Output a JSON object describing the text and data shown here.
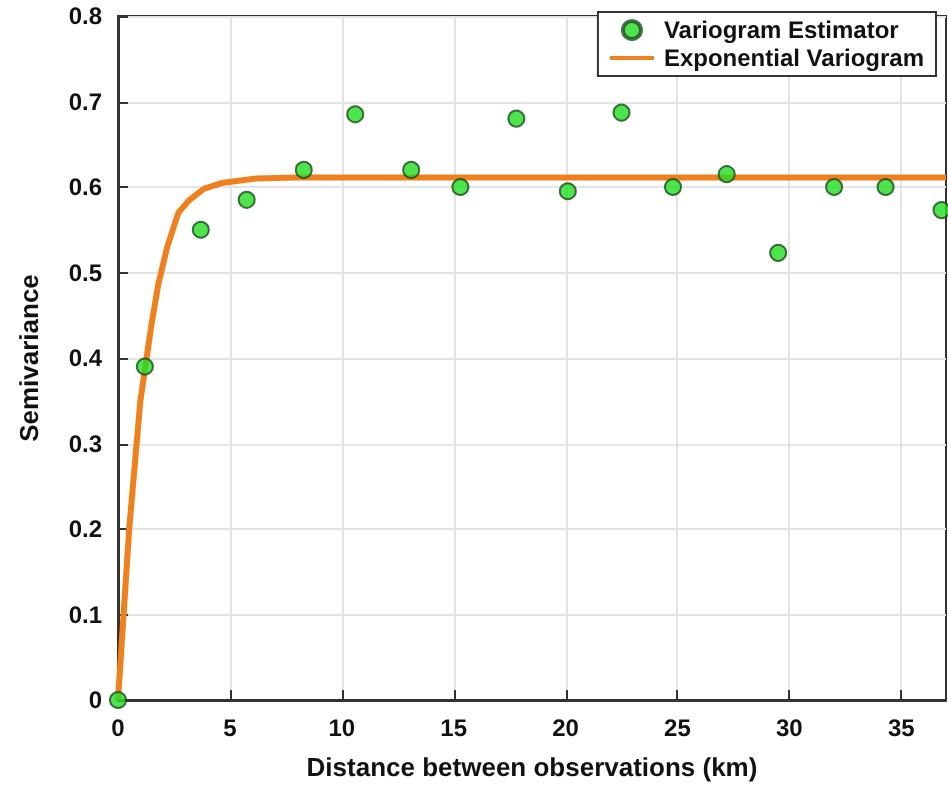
{
  "chart_data": {
    "type": "scatter",
    "xlabel": "Distance between observations (km)",
    "ylabel": "Semivariance",
    "xlim": [
      0,
      37
    ],
    "xticks": [
      0,
      5,
      10,
      15,
      20,
      25,
      30,
      35
    ],
    "ylim": [
      0,
      0.8
    ],
    "yticks": [
      0,
      0.1,
      0.2,
      0.3,
      0.4,
      0.5,
      0.6,
      0.7,
      0.8
    ],
    "grid": true,
    "legend": "top right",
    "series": [
      {
        "name": "Variogram Estimator",
        "marker": "circle",
        "color": "#22dd22",
        "x": [
          0,
          1.2,
          3.7,
          5.75,
          8.3,
          10.6,
          13.1,
          15.3,
          17.8,
          20.1,
          22.5,
          24.8,
          27.2,
          29.5,
          32.0,
          34.3,
          36.8
        ],
        "values": [
          0,
          0.39,
          0.55,
          0.585,
          0.62,
          0.685,
          0.62,
          0.6,
          0.68,
          0.595,
          0.687,
          0.6,
          0.615,
          0.523,
          0.6,
          0.6,
          0.573
        ]
      },
      {
        "name": "Exponential Variogram",
        "type": "line",
        "color": "#f07f1e",
        "line_style": "solid",
        "x": [
          0,
          0.5,
          1,
          1.5,
          1.8,
          2.2,
          2.7,
          3.2,
          3.85,
          4.7,
          6.2,
          8,
          12,
          20,
          30,
          37
        ],
        "values": [
          0,
          0.2,
          0.35,
          0.44,
          0.486,
          0.53,
          0.57,
          0.585,
          0.598,
          0.605,
          0.61,
          0.611,
          0.611,
          0.611,
          0.611,
          0.611
        ]
      }
    ]
  }
}
